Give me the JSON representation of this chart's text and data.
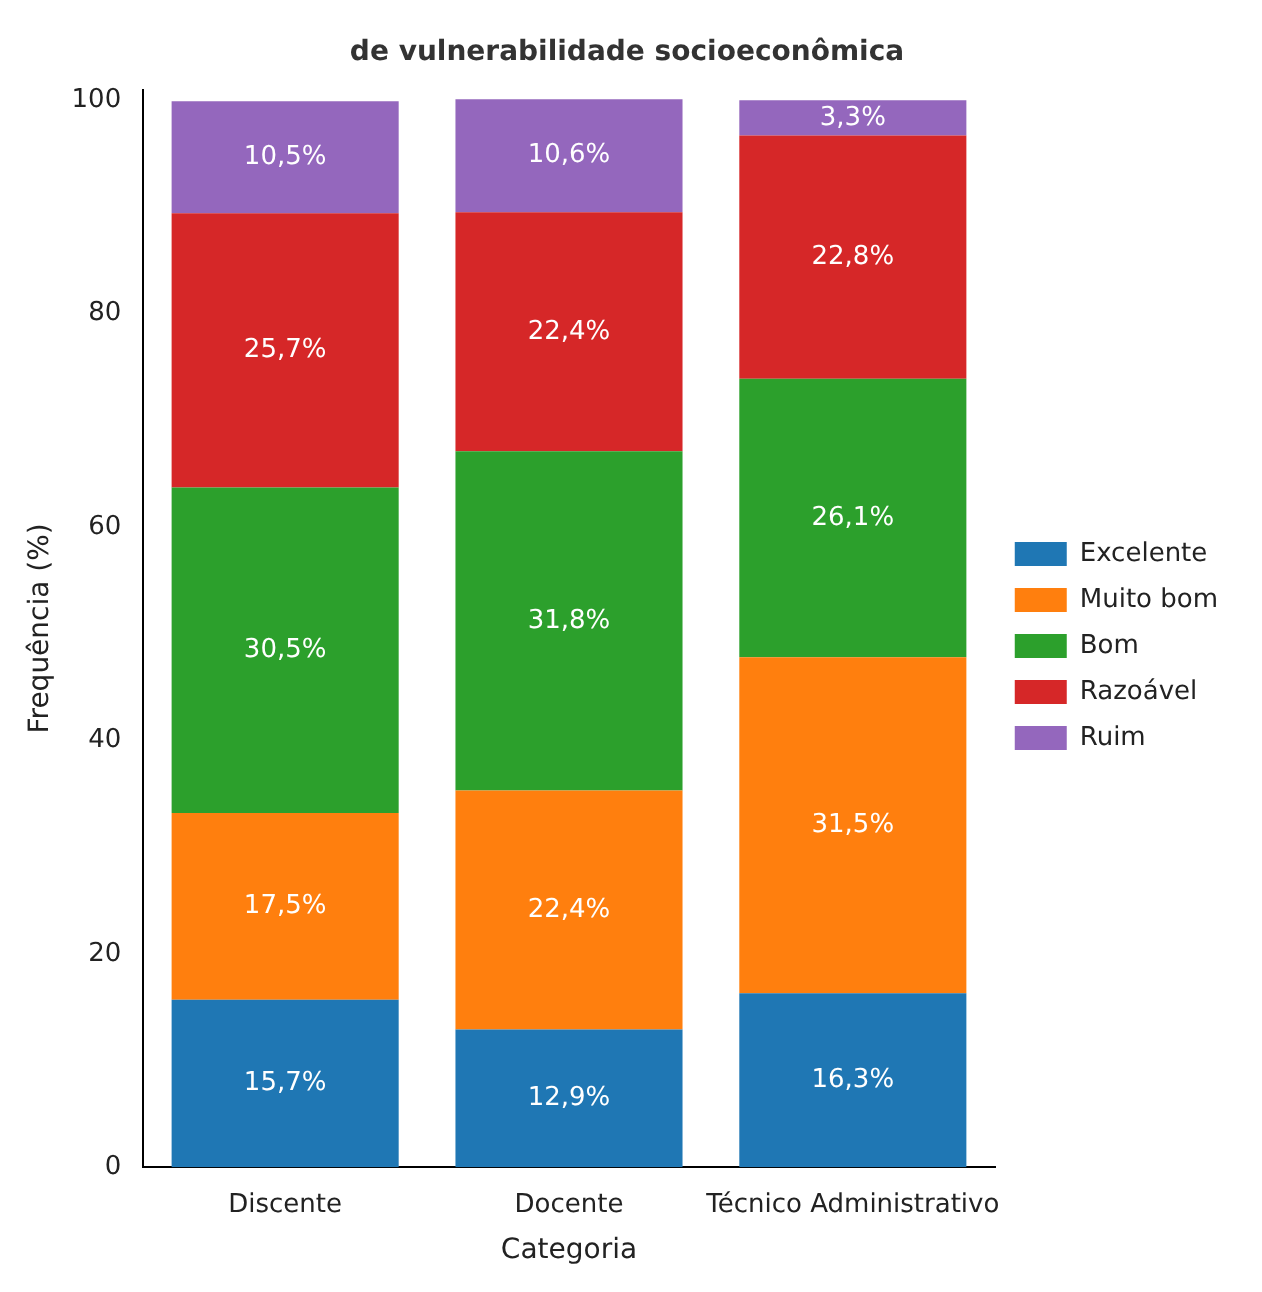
{
  "chart_data": {
    "type": "bar",
    "title": "de vulnerabilidade socioeconômica",
    "xlabel": "Categoria",
    "ylabel": "Frequência (%)",
    "categories": [
      "Discente",
      "Docente",
      "Técnico Administrativo"
    ],
    "stacked": true,
    "legend": "right",
    "grid": false,
    "ylim": [
      0,
      101
    ],
    "yticks": [
      0,
      20,
      40,
      60,
      80,
      100
    ],
    "series": [
      {
        "name": "Excelente",
        "color": "#1f77b4",
        "values": [
          15.7,
          12.9,
          16.3
        ],
        "value_labels": [
          "15,7%",
          "12,9%",
          "16,3%"
        ]
      },
      {
        "name": "Muito bom",
        "color": "#ff7f0e",
        "values": [
          17.5,
          22.4,
          31.5
        ],
        "value_labels": [
          "17,5%",
          "22,4%",
          "31,5%"
        ]
      },
      {
        "name": "Bom",
        "color": "#2ca02c",
        "values": [
          30.5,
          31.8,
          26.1
        ],
        "value_labels": [
          "30,5%",
          "31,8%",
          "26,1%"
        ]
      },
      {
        "name": "Razoável",
        "color": "#d62728",
        "values": [
          25.7,
          22.4,
          22.8
        ],
        "value_labels": [
          "25,7%",
          "22,4%",
          "22,8%"
        ]
      },
      {
        "name": "Ruim",
        "color": "#9467bd",
        "values": [
          10.5,
          10.6,
          3.3
        ],
        "value_labels": [
          "10,5%",
          "10,6%",
          "3,3%"
        ]
      }
    ]
  }
}
